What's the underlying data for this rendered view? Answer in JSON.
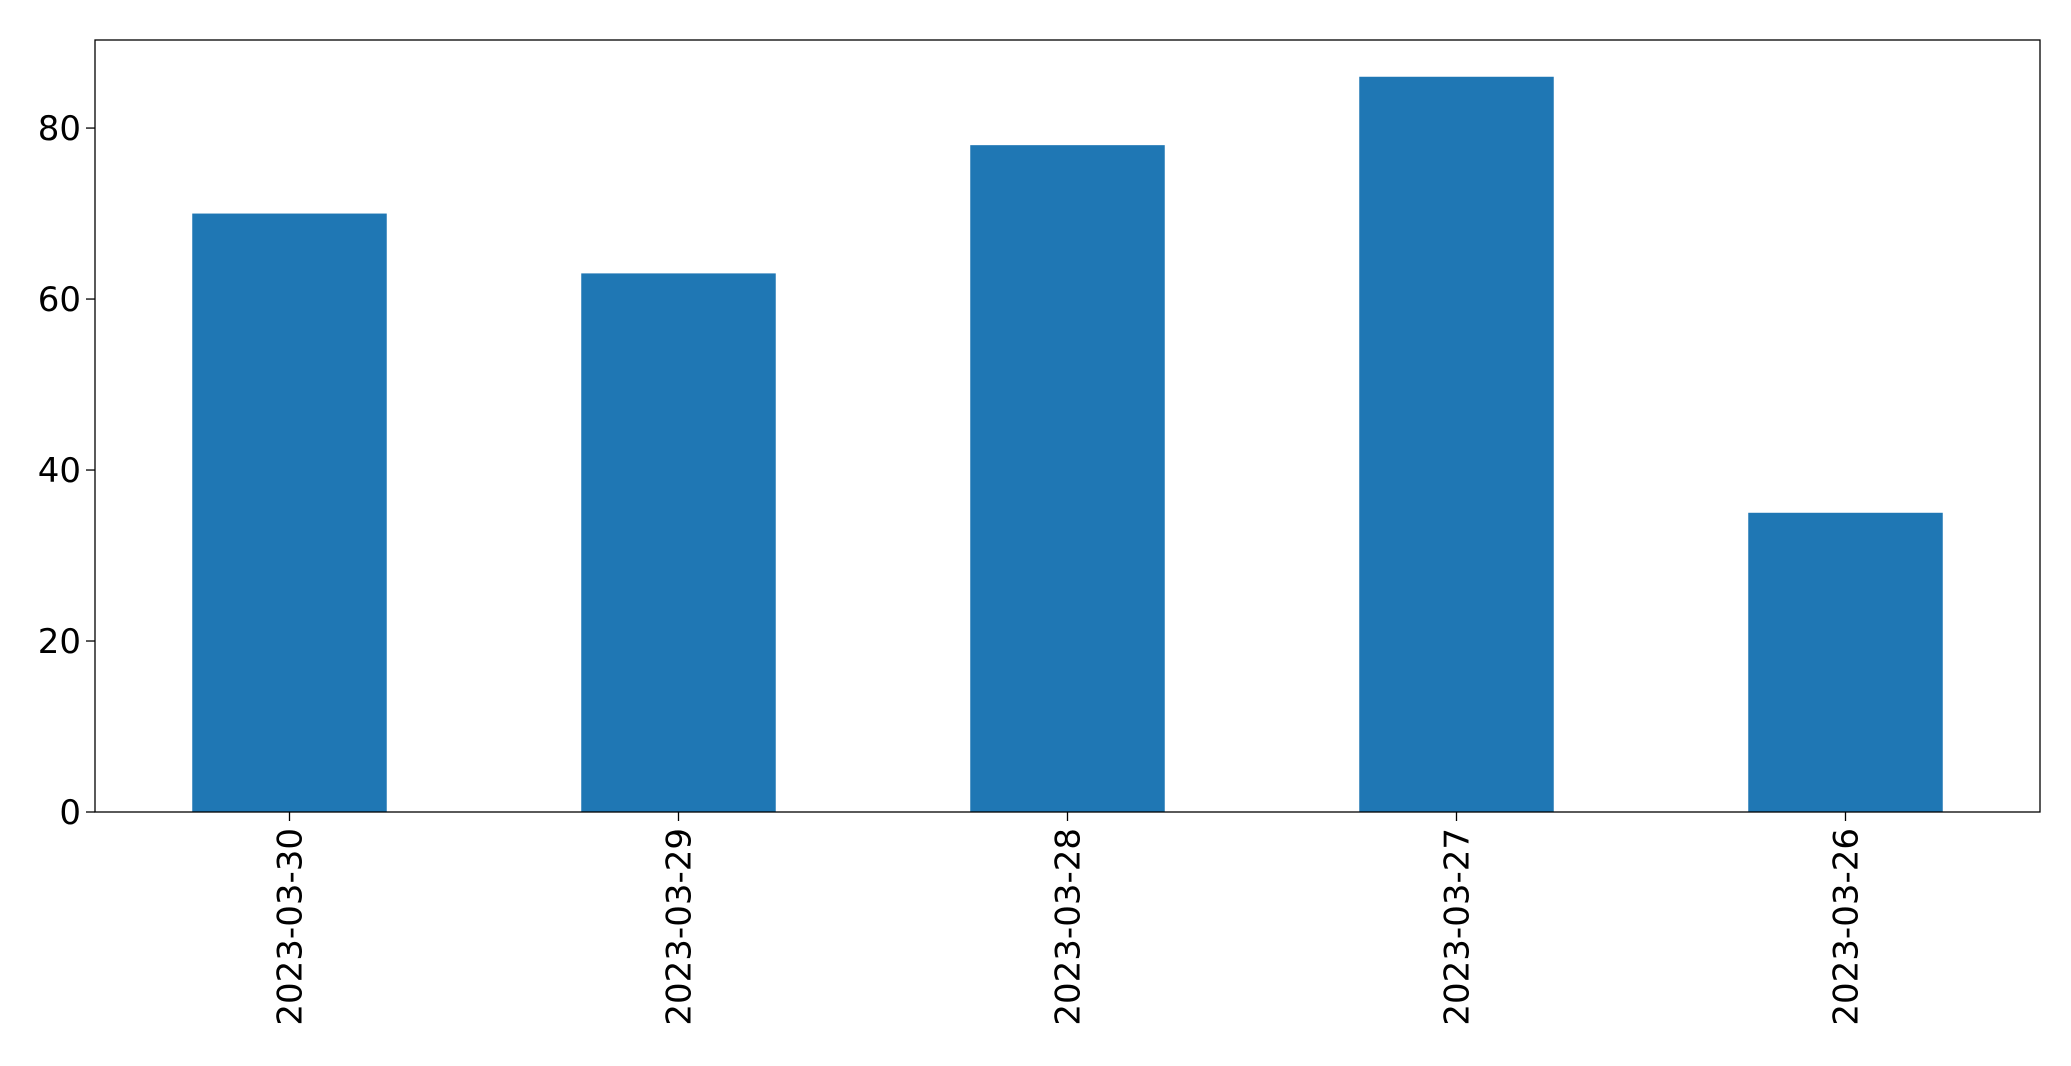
{
  "chart_data": {
    "type": "bar",
    "title": "",
    "xlabel": "",
    "ylabel": "",
    "categories": [
      "2023-03-30",
      "2023-03-29",
      "2023-03-28",
      "2023-03-27",
      "2023-03-26"
    ],
    "values": [
      70,
      63,
      78,
      86,
      35
    ],
    "ylim": [
      0,
      90.3
    ],
    "yticks": [
      0,
      20,
      40,
      60,
      80
    ],
    "grid": false,
    "legend": "none",
    "bar_color": "#1f77b4"
  }
}
